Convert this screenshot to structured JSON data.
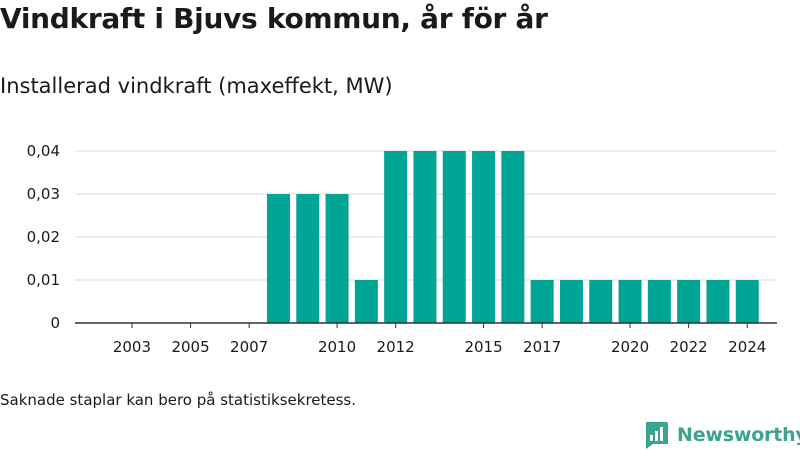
{
  "header": {
    "title": "Vindkraft i Bjuvs kommun, år för år",
    "subtitle": "Installerad vindkraft (maxeffekt, MW)"
  },
  "footer": {
    "note": "Saknade staplar kan bero på statistiksekretess.",
    "brand": "Newsworthy"
  },
  "colors": {
    "bar": "#00a595",
    "grid": "#d9d9d9",
    "axis": "#333333",
    "brand": "#3aa48d"
  },
  "icons": {
    "brand_logo": "newsworthy-logo-icon"
  },
  "chart_data": {
    "type": "bar",
    "title": "Vindkraft i Bjuvs kommun, år för år",
    "subtitle": "Installerad vindkraft (maxeffekt, MW)",
    "xlabel": "",
    "ylabel": "",
    "categories": [
      "2002",
      "2003",
      "2004",
      "2005",
      "2006",
      "2007",
      "2008",
      "2009",
      "2010",
      "2011",
      "2012",
      "2013",
      "2014",
      "2015",
      "2016",
      "2017",
      "2018",
      "2019",
      "2020",
      "2021",
      "2022",
      "2023",
      "2024"
    ],
    "values": [
      0,
      0,
      0,
      0,
      0,
      0,
      0.03,
      0.03,
      0.03,
      0.01,
      0.04,
      0.04,
      0.04,
      0.04,
      0.04,
      0.01,
      0.01,
      0.01,
      0.01,
      0.01,
      0.01,
      0.01,
      0.01
    ],
    "x_tick_labels": [
      "2003",
      "2005",
      "2007",
      "2010",
      "2012",
      "2015",
      "2017",
      "2020",
      "2022",
      "2024"
    ],
    "y_ticks": [
      0,
      0.01,
      0.02,
      0.03,
      0.04
    ],
    "y_tick_labels": [
      "0",
      "0,01",
      "0,02",
      "0,03",
      "0,04"
    ],
    "ylim": [
      0,
      0.04
    ],
    "grid": true,
    "legend": "none"
  }
}
